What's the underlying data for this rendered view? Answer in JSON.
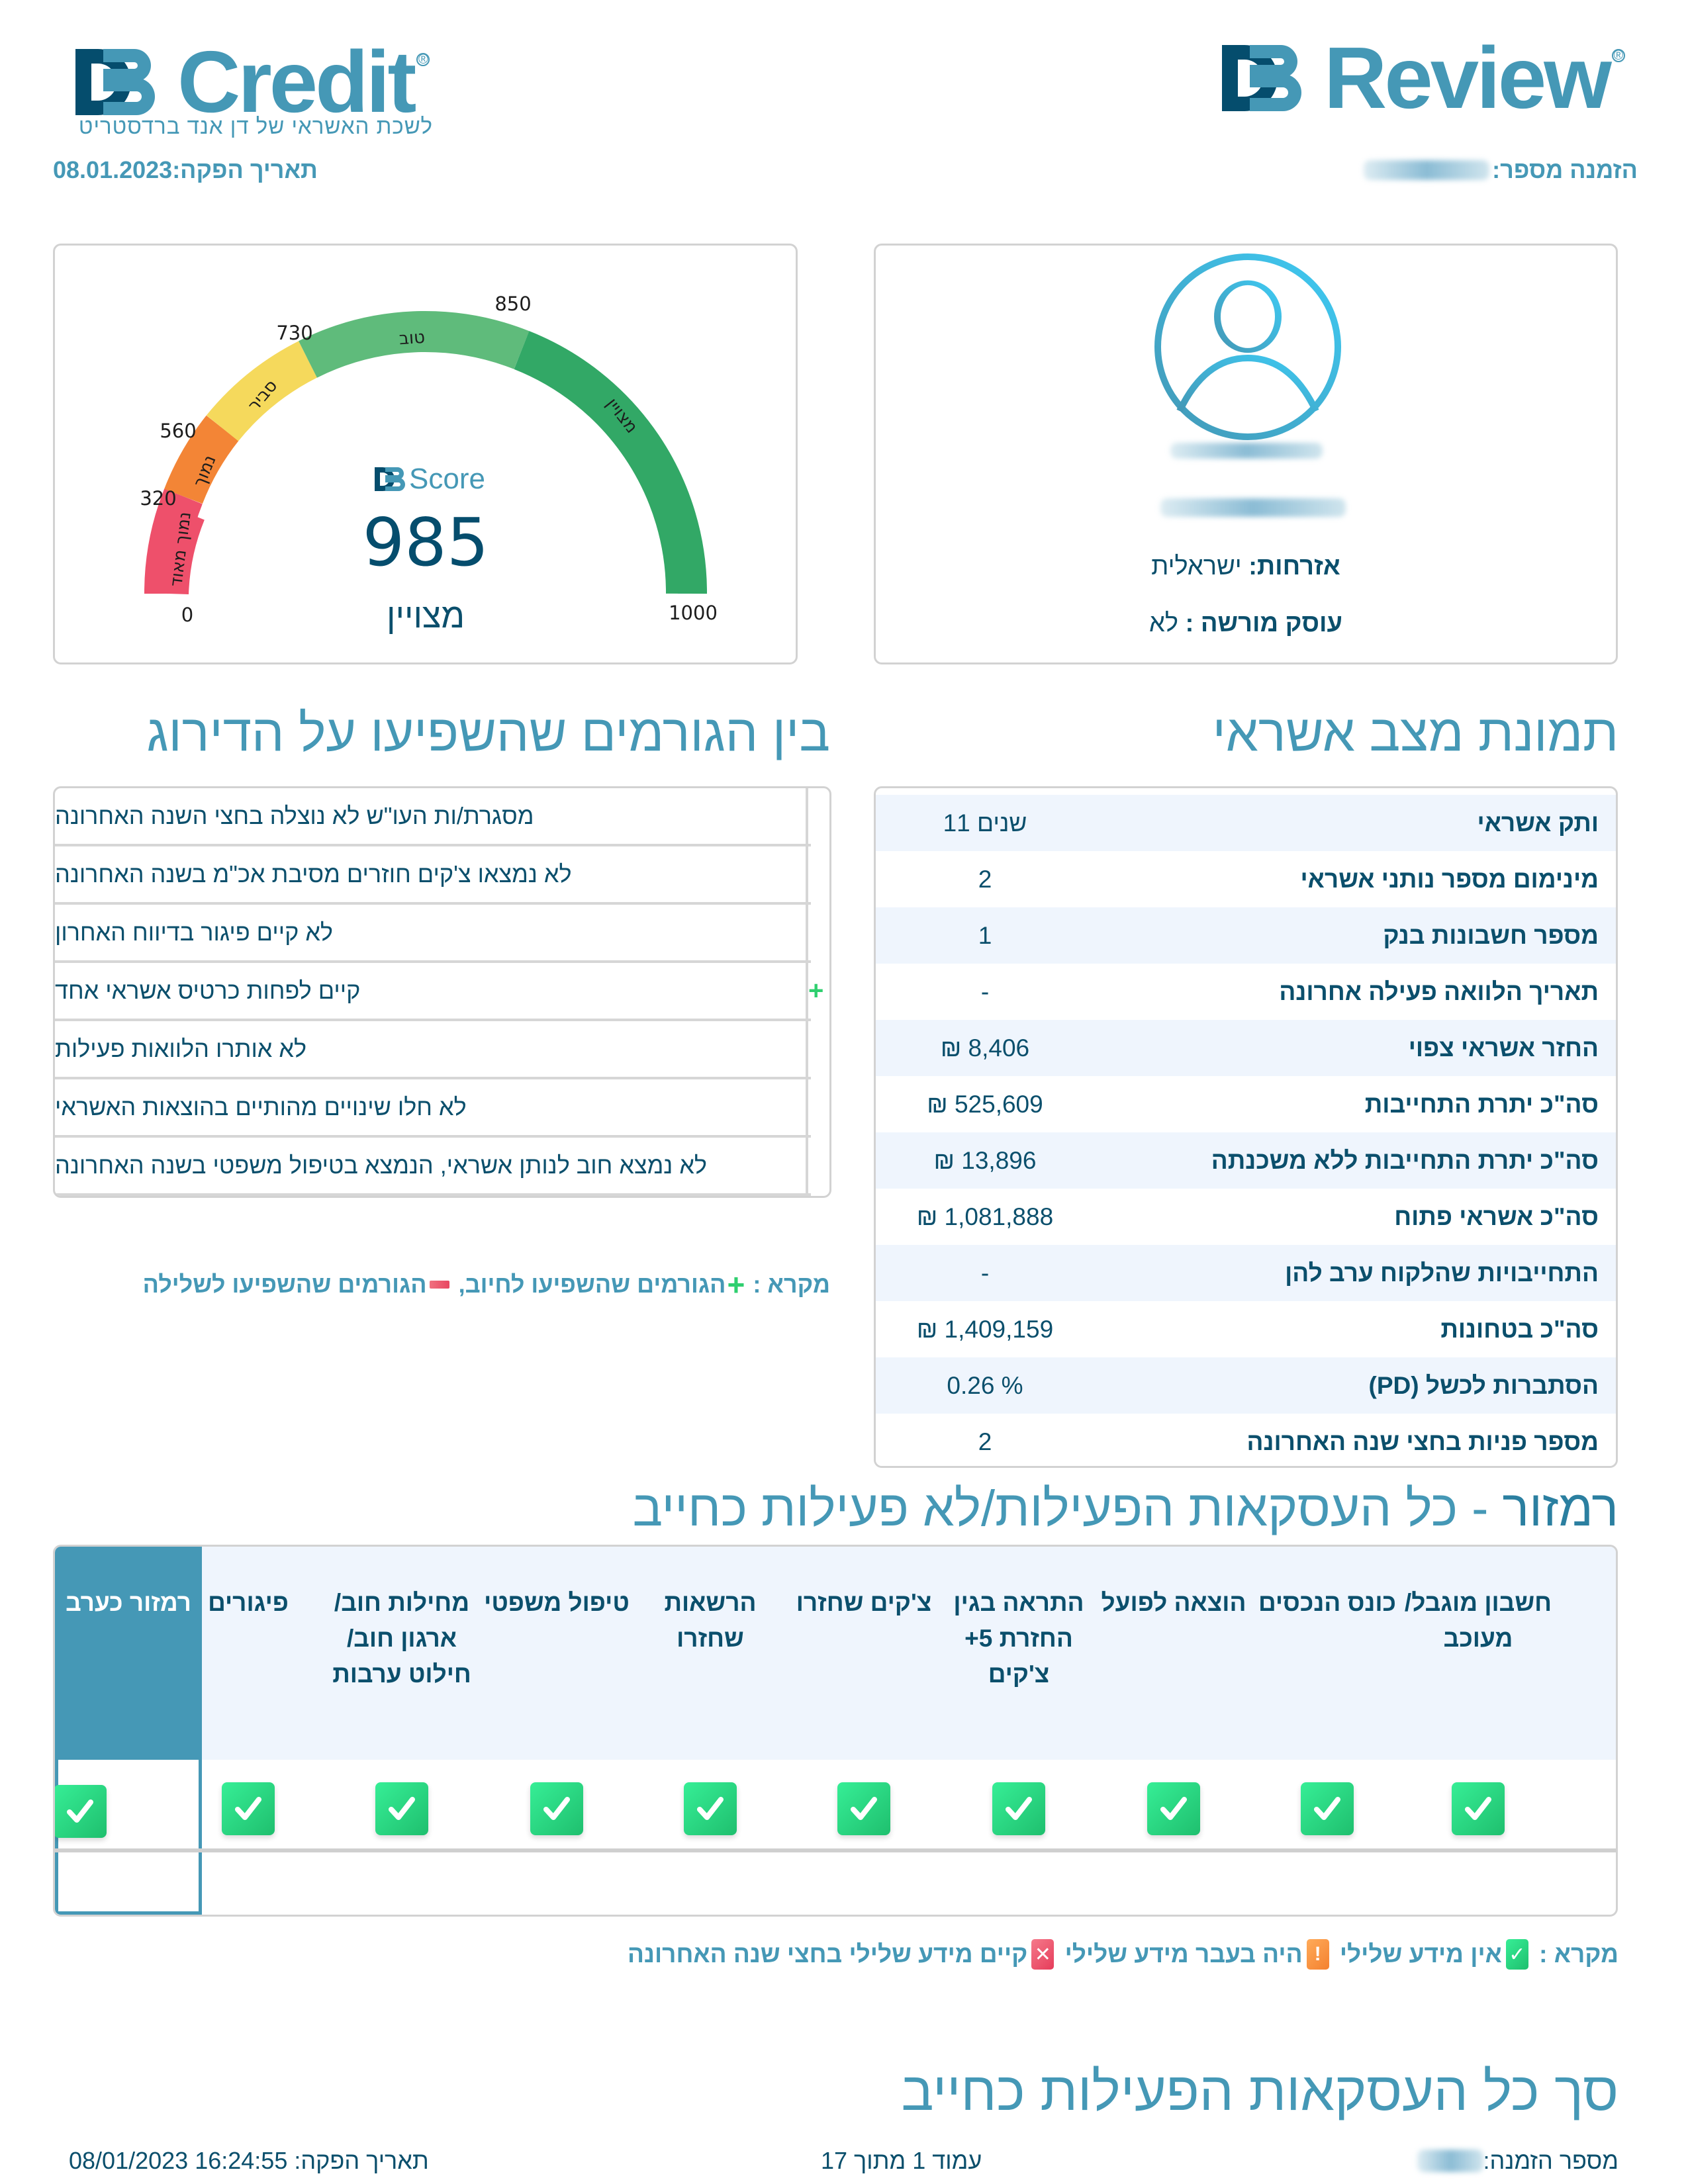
{
  "header": {
    "left_logo": {
      "mark": "DB",
      "word": "Credit",
      "tagline": "לשכת האשראי של דן אנד ברדסטריט"
    },
    "right_logo": {
      "mark": "DB",
      "word": "Review"
    },
    "issue_date_label": "תאריך הפקה:",
    "issue_date_value": "08.01.2023",
    "order_number_label": "הזמנה מספר:"
  },
  "score_card": {
    "brand_mark": "DB",
    "brand_word": "Score",
    "score": "985",
    "rating": "מצויין",
    "ticks": [
      "0",
      "320",
      "560",
      "730",
      "850",
      "1000"
    ],
    "segments": [
      {
        "label": "נמוך מאוד",
        "from": 0,
        "to": 320,
        "color": "#ee506b"
      },
      {
        "label": "נמוך",
        "from": 320,
        "to": 560,
        "color": "#f38536"
      },
      {
        "label": "סביר",
        "from": 560,
        "to": 730,
        "color": "#f5d95c"
      },
      {
        "label": "טוב",
        "from": 730,
        "to": 850,
        "color": "#5fbb7b"
      },
      {
        "label": "מצויין",
        "from": 850,
        "to": 1000,
        "color": "#32a866"
      }
    ],
    "track_color": "#d6eaea",
    "progress_color": "#3ea0d0"
  },
  "profile_card": {
    "avatar_icon": "user-circle-icon",
    "citizenship_label": "אזרחות:",
    "citizenship_value": "ישראלית",
    "licensed_dealer_label": "עוסק מורשה :",
    "licensed_dealer_value": "לא"
  },
  "factors_section": {
    "title": "בין הגורמים שהשפיעו על הדירוג",
    "items": [
      {
        "text": "מסגרת/ות העו\"ש לא נוצלה בחצי השנה האחרונה",
        "sign": ""
      },
      {
        "text": "לא נמצאו צ'קים חוזרים מסיבת אכ\"מ בשנה האחרונה",
        "sign": ""
      },
      {
        "text": "לא קיים פיגור בדיווח האחרון",
        "sign": ""
      },
      {
        "text": "קיים לפחות כרטיס אשראי אחד",
        "sign": "+"
      },
      {
        "text": "לא אותרו הלוואות פעילות",
        "sign": ""
      },
      {
        "text": "לא חלו שינויים מהותיים בהוצאות האשראי",
        "sign": ""
      },
      {
        "text": "לא נמצא חוב לנותן אשראי, הנמצא בטיפול משפטי בשנה האחרונה",
        "sign": ""
      }
    ],
    "legend": {
      "prefix": "מקרא :",
      "positive": "הגורמים שהשפיעו לחיוב,",
      "negative": "הגורמים שהשפיעו לשלילה"
    }
  },
  "credit_picture": {
    "title": "תמונת מצב אשראי",
    "rows": [
      {
        "label": "ותק אשראי",
        "value": "11 שנים"
      },
      {
        "label": "מינימום מספר נותני אשראי",
        "value": "2"
      },
      {
        "label": "מספר חשבונות בנק",
        "value": "1"
      },
      {
        "label": "תאריך הלוואה פעילה אחרונה",
        "value": "-"
      },
      {
        "label": "החזר אשראי צפוי",
        "value": "₪ 8,406"
      },
      {
        "label": "סה\"כ יתרת התחייבות",
        "value": "₪ 525,609"
      },
      {
        "label": "סה\"כ יתרת התחייבות ללא משכנתה",
        "value": "₪ 13,896"
      },
      {
        "label": "סה\"כ אשראי פתוח",
        "value": "₪ 1,081,888"
      },
      {
        "label": "התחייבויות שהלקוח ערב להן",
        "value": "-"
      },
      {
        "label": "סה\"כ בטחונות",
        "value": "₪ 1,409,159"
      },
      {
        "label": "הסתברות לכשל (PD)",
        "value": "0.26 %"
      },
      {
        "label": "מספר פניות בחצי שנה האחרונה",
        "value": "2"
      }
    ]
  },
  "traffic_light": {
    "title_strong": "רמזור",
    "title_rest": " - כל העסקאות הפעילות/לא פעילות כחייב",
    "columns": [
      {
        "label": "חשבון מוגבל/ מעוכב",
        "status": "ok"
      },
      {
        "label": "כונס הנכסים",
        "status": "ok"
      },
      {
        "label": "הוצאה לפועל",
        "status": "ok"
      },
      {
        "label": "התראה בגין החזרת 5+ צ'קים",
        "status": "ok"
      },
      {
        "label": "צ'קים שחזרו",
        "status": "ok"
      },
      {
        "label": "הרשאות שחזרו",
        "status": "ok"
      },
      {
        "label": "טיפול משפטי",
        "status": "ok"
      },
      {
        "label": "מחילות חוב/ ארגון חוב/ חילוט ערבות",
        "status": "ok"
      },
      {
        "label": "פיגורים",
        "status": "ok"
      },
      {
        "label": "רמזור כערב",
        "status": "ok"
      }
    ],
    "legend": {
      "prefix": "מקרא :",
      "ok": "אין מידע שלילי",
      "warn": "היה בעבר מידע שלילי",
      "bad": "קיים מידע שלילי בחצי שנה האחרונה"
    },
    "colors": {
      "header_highlight": "#4598b6",
      "header_bg": "#eff5fd"
    }
  },
  "summary_section": {
    "title": "סך כל העסקאות הפעילות כחייב"
  },
  "footer": {
    "order_label": "מספר הזמנה:",
    "page": "עמוד 1 מתוך 17",
    "issue_label": "תאריך הפקה:",
    "issue_value": "16:24:55 08/01/2023"
  }
}
